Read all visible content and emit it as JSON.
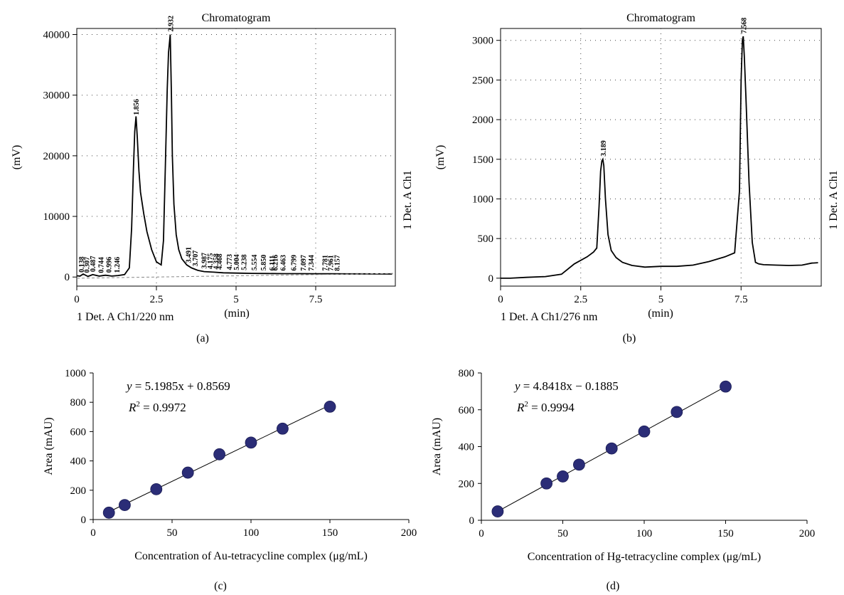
{
  "chart_data": [
    {
      "id": "a",
      "type": "line",
      "title": "Chromatogram",
      "xlabel": "(min)",
      "ylabel": "(mV)",
      "right_label": "1 Det. A Ch1",
      "bottom_left_label": "1 Det. A Ch1/220 nm",
      "caption": "(a)",
      "xlim": [
        0,
        10
      ],
      "ylim": [
        -1500,
        41000
      ],
      "x_ticks": [
        0,
        2.5,
        5,
        7.5
      ],
      "x_tick_labels": [
        "0",
        "2.5",
        "5",
        "7.5"
      ],
      "y_ticks": [
        0,
        10000,
        20000,
        30000,
        40000
      ],
      "y_tick_labels": [
        "0",
        "10000",
        "20000",
        "30000",
        "40000"
      ],
      "grid": "dotted",
      "series": [
        {
          "x": [
            0,
            0.1,
            0.2,
            0.35,
            0.5,
            0.7,
            0.9,
            1.1,
            1.3,
            1.5,
            1.65,
            1.72,
            1.78,
            1.82,
            1.86,
            1.9,
            1.95,
            2.0,
            2.1,
            2.2,
            2.35,
            2.5,
            2.65,
            2.72,
            2.78,
            2.84,
            2.88,
            2.932,
            2.97,
            3.0,
            3.05,
            3.12,
            3.2,
            3.3,
            3.45,
            3.6,
            3.8,
            4.0,
            4.3,
            4.6,
            5.0,
            5.5,
            6.0,
            6.5,
            7.0,
            7.5,
            8.0,
            8.5,
            9.0,
            9.5,
            9.9
          ],
          "y": [
            200,
            150,
            500,
            100,
            400,
            150,
            300,
            150,
            250,
            400,
            1500,
            8000,
            18000,
            24000,
            26500,
            23000,
            17500,
            14000,
            10500,
            7500,
            4500,
            2500,
            2000,
            6000,
            18000,
            31000,
            37000,
            40000,
            30000,
            20000,
            12000,
            7000,
            4500,
            3000,
            2000,
            1500,
            1100,
            900,
            800,
            700,
            650,
            600,
            580,
            560,
            550,
            540,
            530,
            520,
            520,
            510,
            500
          ]
        }
      ],
      "peak_labels": [
        "0.138",
        "0.307",
        "0.487",
        "0.744",
        "0.996",
        "1.246",
        "1.856",
        "2.932",
        "3.491",
        "3.707",
        "3.987",
        "4.175",
        "4.358",
        "4.468",
        "4.773",
        "5.004",
        "5.238",
        "5.554",
        "5.850",
        "6.111",
        "6.216",
        "6.463",
        "6.799",
        "7.097",
        "7.344",
        "7.781",
        "7.961",
        "8.157"
      ],
      "peak_label_x": [
        0.138,
        0.307,
        0.487,
        0.744,
        0.996,
        1.246,
        1.856,
        2.932,
        3.491,
        3.707,
        3.987,
        4.175,
        4.358,
        4.468,
        4.773,
        5.004,
        5.238,
        5.554,
        5.85,
        6.111,
        6.216,
        6.463,
        6.799,
        7.097,
        7.344,
        7.781,
        7.961,
        8.157
      ]
    },
    {
      "id": "b",
      "type": "line",
      "title": "Chromatogram",
      "xlabel": "(min)",
      "ylabel": "(mV)",
      "right_label": "1 Det. A Ch1",
      "bottom_left_label": "1 Det. A Ch1/276 nm",
      "caption": "(b)",
      "xlim": [
        0,
        10
      ],
      "ylim": [
        -100,
        3150
      ],
      "x_ticks": [
        0,
        2.5,
        5,
        7.5
      ],
      "x_tick_labels": [
        "0",
        "2.5",
        "5",
        "7.5"
      ],
      "y_ticks": [
        0,
        500,
        1000,
        1500,
        2000,
        2500,
        3000
      ],
      "y_tick_labels": [
        "0",
        "500",
        "1000",
        "1500",
        "2000",
        "2500",
        "3000"
      ],
      "grid": "dotted",
      "series": [
        {
          "x": [
            0,
            0.3,
            0.8,
            1.4,
            1.9,
            2.3,
            2.7,
            2.9,
            3.0,
            3.07,
            3.12,
            3.16,
            3.189,
            3.22,
            3.27,
            3.35,
            3.45,
            3.6,
            3.8,
            4.1,
            4.5,
            5.0,
            5.5,
            6.0,
            6.5,
            7.0,
            7.3,
            7.45,
            7.5,
            7.54,
            7.568,
            7.6,
            7.65,
            7.75,
            7.85,
            7.95,
            8.05,
            8.2,
            8.6,
            9.0,
            9.4,
            9.7,
            9.9
          ],
          "y": [
            0,
            0,
            10,
            20,
            50,
            180,
            270,
            330,
            380,
            900,
            1350,
            1480,
            1500,
            1420,
            1000,
            550,
            350,
            260,
            200,
            160,
            140,
            150,
            150,
            165,
            210,
            270,
            320,
            1100,
            2500,
            3000,
            3050,
            2800,
            2300,
            1200,
            450,
            200,
            180,
            170,
            165,
            160,
            165,
            190,
            195
          ]
        }
      ],
      "peak_labels": [
        "3.189",
        "7.568"
      ],
      "peak_label_x": [
        3.189,
        7.568
      ]
    },
    {
      "id": "c",
      "type": "scatter",
      "xlabel": "Concentration of Au-tetracycline complex (μg/mL)",
      "ylabel": "Area (mAU)",
      "caption": "(c)",
      "xlim": [
        0,
        200
      ],
      "ylim": [
        0,
        1000
      ],
      "x_ticks": [
        0,
        50,
        100,
        150,
        200
      ],
      "x_tick_labels": [
        "0",
        "50",
        "100",
        "150",
        "200"
      ],
      "y_ticks": [
        0,
        200,
        400,
        600,
        800,
        1000
      ],
      "y_tick_labels": [
        "0",
        "200",
        "400",
        "600",
        "800",
        "1000"
      ],
      "grid": false,
      "points": {
        "x": [
          10,
          20,
          40,
          60,
          80,
          100,
          120,
          150
        ],
        "y": [
          47,
          99,
          207,
          320,
          445,
          525,
          620,
          770
        ]
      },
      "fit": {
        "slope": 5.1985,
        "intercept": 0.8569,
        "x_range": [
          10,
          150
        ]
      },
      "equation_lhs": "y",
      "equation_rhs": " = 5.1985x + 0.8569",
      "r2_label": "R",
      "r2_sup": "2",
      "r2_value": " = 0.9972",
      "colors": {
        "marker": "#2b2d77",
        "line": "#000000"
      }
    },
    {
      "id": "d",
      "type": "scatter",
      "xlabel": "Concentration of Hg-tetracycline complex (μg/mL)",
      "ylabel": "Area (mAU)",
      "caption": "(d)",
      "xlim": [
        0,
        200
      ],
      "ylim": [
        0,
        800
      ],
      "x_ticks": [
        0,
        50,
        100,
        150,
        200
      ],
      "x_tick_labels": [
        "0",
        "50",
        "100",
        "150",
        "200"
      ],
      "y_ticks": [
        0,
        200,
        400,
        600,
        800
      ],
      "y_tick_labels": [
        "0",
        "200",
        "400",
        "600",
        "800"
      ],
      "grid": false,
      "points": {
        "x": [
          10,
          40,
          50,
          60,
          80,
          100,
          120,
          150
        ],
        "y": [
          48,
          200,
          238,
          302,
          390,
          482,
          588,
          726
        ]
      },
      "fit": {
        "slope": 4.8418,
        "intercept": -0.1885,
        "x_range": [
          10,
          150
        ]
      },
      "equation_lhs": "y",
      "equation_rhs": " = 4.8418x − 0.1885",
      "r2_label": "R",
      "r2_sup": "2",
      "r2_value": " = 0.9994",
      "colors": {
        "marker": "#2b2d77",
        "line": "#000000"
      }
    }
  ]
}
